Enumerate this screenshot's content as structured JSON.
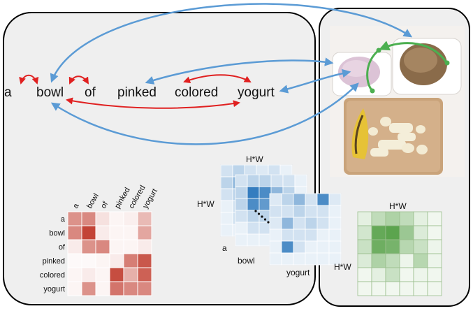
{
  "sentence": {
    "words": [
      "a",
      "bowl",
      "of",
      "pinked",
      "colored",
      "yogurt"
    ]
  },
  "text_attention": {
    "row_labels": [
      "a",
      "bowl",
      "of",
      "pinked",
      "colored",
      "yogurt"
    ],
    "col_labels": [
      "a",
      "bowl",
      "of",
      "pinked",
      "colored",
      "yogurt"
    ],
    "values": [
      [
        0.55,
        0.6,
        0.15,
        0.05,
        0.08,
        0.35
      ],
      [
        0.6,
        0.95,
        0.1,
        0.05,
        0.05,
        0.45
      ],
      [
        0.1,
        0.55,
        0.6,
        0.05,
        0.05,
        0.1
      ],
      [
        0.02,
        0.03,
        0.05,
        0.1,
        0.65,
        0.85
      ],
      [
        0.05,
        0.1,
        0.05,
        0.9,
        0.4,
        0.8
      ],
      [
        0.05,
        0.55,
        0.05,
        0.7,
        0.6,
        0.6
      ]
    ],
    "color": "#c0392b"
  },
  "word_maps": {
    "size_label": "H*W",
    "maps": [
      {
        "label": "a"
      },
      {
        "label": "bowl"
      },
      {
        "label": "yogurt"
      }
    ],
    "color": "#1f6fb8"
  },
  "image_map": {
    "size_label": "H*W",
    "side_label": "H*W",
    "values": [
      [
        0.15,
        0.35,
        0.45,
        0.35,
        0.15,
        0.05
      ],
      [
        0.25,
        0.85,
        0.9,
        0.55,
        0.2,
        0.05
      ],
      [
        0.3,
        0.8,
        0.75,
        0.4,
        0.3,
        0.1
      ],
      [
        0.2,
        0.45,
        0.35,
        0.1,
        0.4,
        0.1
      ],
      [
        0.05,
        0.15,
        0.3,
        0.05,
        0.1,
        0.05
      ],
      [
        0.05,
        0.05,
        0.05,
        0.05,
        0.05,
        0.05
      ]
    ],
    "color": "#4a9a3a"
  },
  "colors": {
    "text_link": "#e02020",
    "cross_link": "#5b9bd5",
    "image_link": "#4caf50"
  }
}
